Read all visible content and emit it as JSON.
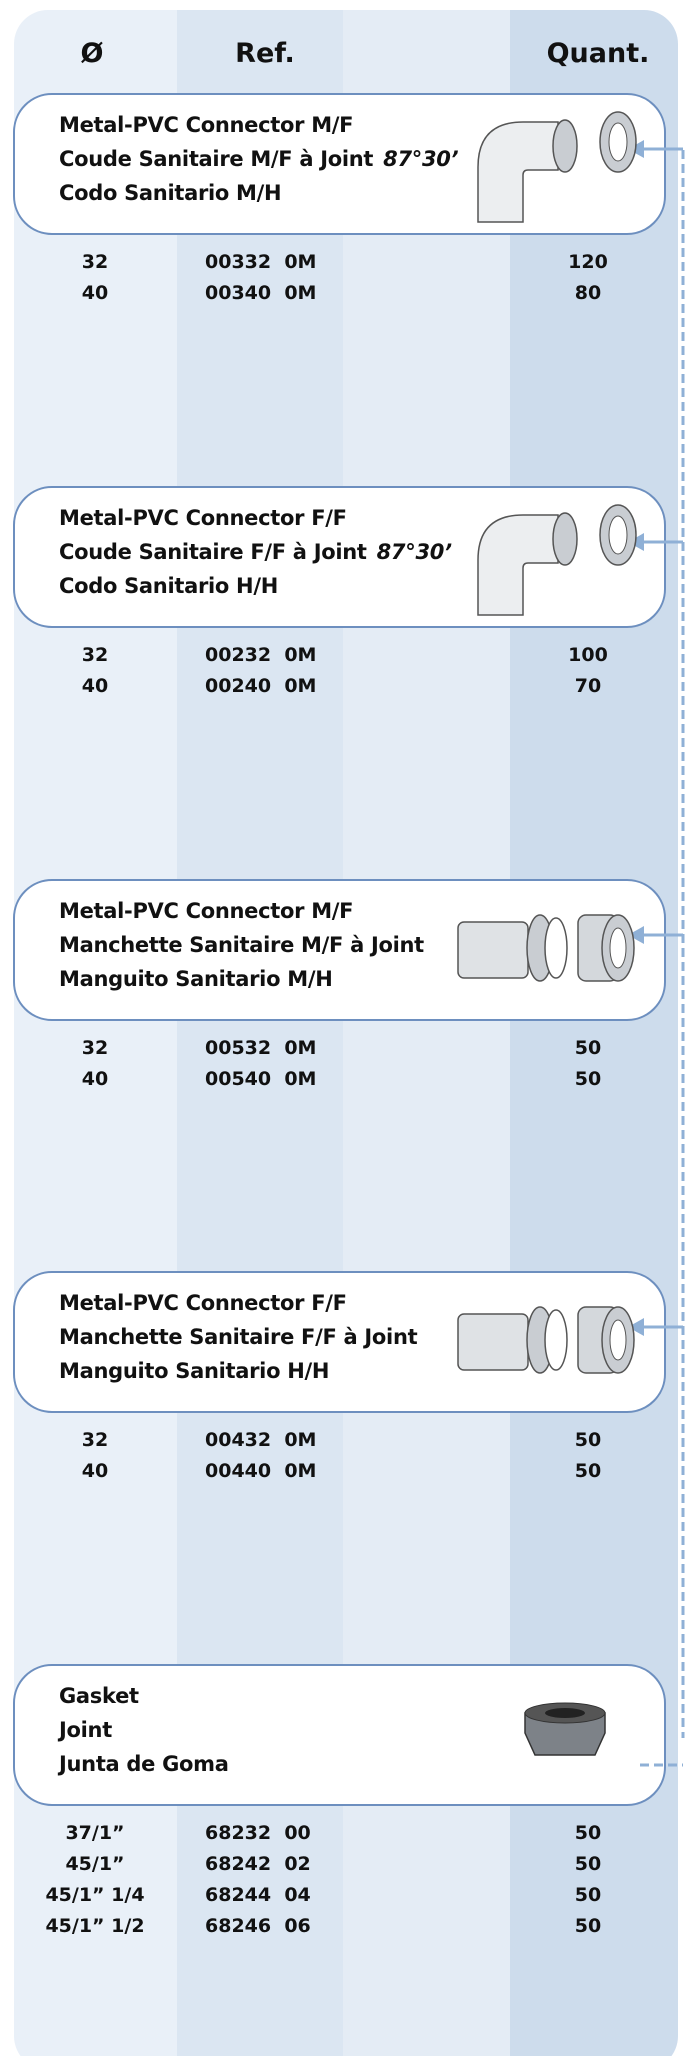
{
  "header": {
    "diameter": "Ø",
    "ref": "Ref.",
    "quantity": "Quant."
  },
  "sections": [
    {
      "lines": [
        "Metal-PVC Connector M/F",
        "Coude Sanitaire M/F à Joint",
        "Codo Sanitario M/H"
      ],
      "angle": "87°30’",
      "rows": [
        [
          "32",
          "00332  0M",
          "120"
        ],
        [
          "40",
          "00340  0M",
          "80"
        ]
      ]
    },
    {
      "lines": [
        "Metal-PVC Connector F/F",
        "Coude Sanitaire F/F à Joint",
        "Codo Sanitario H/H"
      ],
      "angle": "87°30’",
      "rows": [
        [
          "32",
          "00232  0M",
          "100"
        ],
        [
          "40",
          "00240  0M",
          "70"
        ]
      ]
    },
    {
      "lines": [
        "Metal-PVC Connector M/F",
        "Manchette Sanitaire M/F à Joint",
        "Manguito Sanitario M/H"
      ],
      "rows": [
        [
          "32",
          "00532  0M",
          "50"
        ],
        [
          "40",
          "00540  0M",
          "50"
        ]
      ]
    },
    {
      "lines": [
        "Metal-PVC Connector F/F",
        "Manchette Sanitaire F/F à Joint",
        "Manguito Sanitario H/H"
      ],
      "rows": [
        [
          "32",
          "00432  0M",
          "50"
        ],
        [
          "40",
          "00440  0M",
          "50"
        ]
      ]
    },
    {
      "lines": [
        "Gasket",
        "Joint",
        "Junta de Goma"
      ],
      "rows": [
        [
          "37/1”",
          "68232  00",
          "50"
        ],
        [
          "45/1”",
          "68242  02",
          "50"
        ],
        [
          "45/1” 1/4",
          "68244  04",
          "50"
        ],
        [
          "45/1” 1/2",
          "68246  06",
          "50"
        ]
      ]
    }
  ]
}
